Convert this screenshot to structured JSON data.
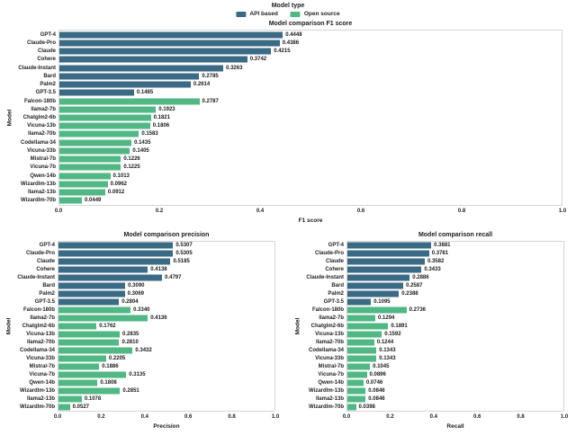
{
  "colors": {
    "api_based": "#3b6a85",
    "open_source": "#51b785",
    "background": "#ffffff"
  },
  "legend": {
    "title": "Model type",
    "entries": [
      {
        "label": "API based",
        "color": "#3b6a85"
      },
      {
        "label": "Open source",
        "color": "#51b785"
      }
    ]
  },
  "models": [
    "GPT-4",
    "Claude-Pro",
    "Claude",
    "Cohere",
    "Claude-Instant",
    "Bard",
    "Palm2",
    "GPT-3.5",
    "Falcon-180b",
    "llama2-7b",
    "Chatglm2-6b",
    "Vicuna-13b",
    "llama2-70b",
    "Codellama-34",
    "Vicuna-33b",
    "Mistral-7b",
    "Vicuna-7b",
    "Qwen-14b",
    "Wizardlm-13b",
    "llama2-13b",
    "Wizardlm-70b"
  ],
  "model_types": [
    "API based",
    "API based",
    "API based",
    "API based",
    "API based",
    "API based",
    "API based",
    "API based",
    "Open source",
    "Open source",
    "Open source",
    "Open source",
    "Open source",
    "Open source",
    "Open source",
    "Open source",
    "Open source",
    "Open source",
    "Open source",
    "Open source",
    "Open source"
  ],
  "chart_data": [
    {
      "type": "bar",
      "orientation": "horizontal",
      "title": "Model comparison F1 score",
      "xlabel": "F1 score",
      "ylabel": "Model",
      "xlim": [
        0,
        1
      ],
      "xticks": [
        "0.0",
        "0.2",
        "0.4",
        "0.6",
        "0.8",
        "1.0"
      ],
      "grid": false,
      "categories": [
        "GPT-4",
        "Claude-Pro",
        "Claude",
        "Cohere",
        "Claude-Instant",
        "Bard",
        "Palm2",
        "GPT-3.5",
        "Falcon-180b",
        "llama2-7b",
        "Chatglm2-6b",
        "Vicuna-13b",
        "llama2-70b",
        "Codellama-34",
        "Vicuna-33b",
        "Mistral-7b",
        "Vicuna-7b",
        "Qwen-14b",
        "Wizardlm-13b",
        "llama2-13b",
        "Wizardlm-70b"
      ],
      "values": [
        0.4448,
        0.4386,
        0.4215,
        0.3742,
        0.3263,
        0.2785,
        0.2614,
        0.1485,
        0.2787,
        0.1923,
        0.1821,
        0.1806,
        0.1583,
        0.1435,
        0.1405,
        0.1226,
        0.1225,
        0.1013,
        0.0962,
        0.0912,
        0.0449
      ]
    },
    {
      "type": "bar",
      "orientation": "horizontal",
      "title": "Model comparison precision",
      "xlabel": "Precision",
      "ylabel": "Model",
      "xlim": [
        0,
        1
      ],
      "xticks": [
        "0.0",
        "0.2",
        "0.4",
        "0.6",
        "0.8",
        "1.0"
      ],
      "grid": false,
      "categories": [
        "GPT-4",
        "Claude-Pro",
        "Claude",
        "Cohere",
        "Claude-Instant",
        "Bard",
        "Palm2",
        "GPT-3.5",
        "Falcon-180b",
        "llama2-7b",
        "Chatglm2-6b",
        "Vicuna-13b",
        "llama2-70b",
        "Codellama-34",
        "Vicuna-33b",
        "Mistral-7b",
        "Vicuna-7b",
        "Qwen-14b",
        "Wizardlm-13b",
        "llama2-13b",
        "Wizardlm-70b"
      ],
      "values": [
        0.5307,
        0.5305,
        0.5185,
        0.4138,
        0.4797,
        0.309,
        0.3069,
        0.2804,
        0.334,
        0.4136,
        0.1762,
        0.2835,
        0.281,
        0.3432,
        0.2205,
        0.1886,
        0.3135,
        0.1808,
        0.2851,
        0.1078,
        0.0527
      ]
    },
    {
      "type": "bar",
      "orientation": "horizontal",
      "title": "Model comparison recall",
      "xlabel": "Recall",
      "ylabel": "Model",
      "xlim": [
        0,
        1
      ],
      "xticks": [
        "0.0",
        "0.2",
        "0.4",
        "0.6",
        "0.8",
        "1.0"
      ],
      "grid": false,
      "categories": [
        "GPT-4",
        "Claude-Pro",
        "Claude",
        "Cohere",
        "Claude-Instant",
        "Bard",
        "Palm2",
        "GPT-3.5",
        "Falcon-180b",
        "llama2-7b",
        "Chatglm2-6b",
        "Vicuna-13b",
        "llama2-70b",
        "Codellama-34",
        "Vicuna-33b",
        "Mistral-7b",
        "Vicuna-7b",
        "Qwen-14b",
        "Wizardlm-13b",
        "llama2-13b",
        "Wizardlm-70b"
      ],
      "values": [
        0.3881,
        0.3781,
        0.3582,
        0.3433,
        0.2886,
        0.2587,
        0.2388,
        0.1095,
        0.2736,
        0.1294,
        0.1891,
        0.1592,
        0.1244,
        0.1343,
        0.1343,
        0.1045,
        0.0896,
        0.0746,
        0.0846,
        0.0846,
        0.0398
      ]
    }
  ]
}
